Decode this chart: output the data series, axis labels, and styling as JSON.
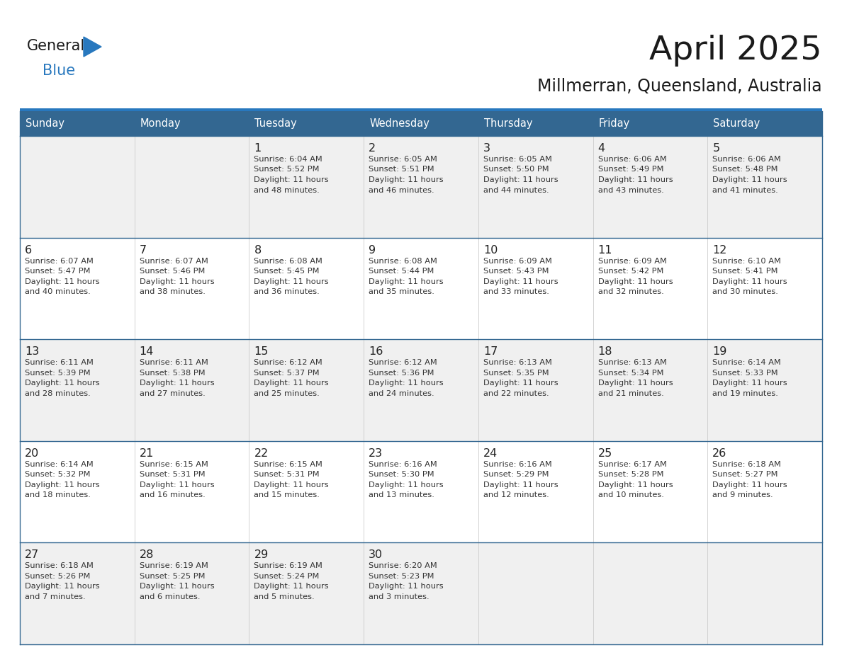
{
  "title": "April 2025",
  "subtitle": "Millmerran, Queensland, Australia",
  "header_color": "#336791",
  "header_text_color": "#ffffff",
  "cell_bg_white": "#ffffff",
  "cell_bg_gray": "#f0f0f0",
  "day_number_color": "#222222",
  "text_color": "#333333",
  "border_color": "#336791",
  "title_color": "#1a1a1a",
  "days_of_week": [
    "Sunday",
    "Monday",
    "Tuesday",
    "Wednesday",
    "Thursday",
    "Friday",
    "Saturday"
  ],
  "weeks": [
    [
      {
        "day": "",
        "sunrise": "",
        "sunset": "",
        "daylight": ""
      },
      {
        "day": "",
        "sunrise": "",
        "sunset": "",
        "daylight": ""
      },
      {
        "day": "1",
        "sunrise": "6:04 AM",
        "sunset": "5:52 PM",
        "daylight": "11 hours and 48 minutes."
      },
      {
        "day": "2",
        "sunrise": "6:05 AM",
        "sunset": "5:51 PM",
        "daylight": "11 hours and 46 minutes."
      },
      {
        "day": "3",
        "sunrise": "6:05 AM",
        "sunset": "5:50 PM",
        "daylight": "11 hours and 44 minutes."
      },
      {
        "day": "4",
        "sunrise": "6:06 AM",
        "sunset": "5:49 PM",
        "daylight": "11 hours and 43 minutes."
      },
      {
        "day": "5",
        "sunrise": "6:06 AM",
        "sunset": "5:48 PM",
        "daylight": "11 hours and 41 minutes."
      }
    ],
    [
      {
        "day": "6",
        "sunrise": "6:07 AM",
        "sunset": "5:47 PM",
        "daylight": "11 hours and 40 minutes."
      },
      {
        "day": "7",
        "sunrise": "6:07 AM",
        "sunset": "5:46 PM",
        "daylight": "11 hours and 38 minutes."
      },
      {
        "day": "8",
        "sunrise": "6:08 AM",
        "sunset": "5:45 PM",
        "daylight": "11 hours and 36 minutes."
      },
      {
        "day": "9",
        "sunrise": "6:08 AM",
        "sunset": "5:44 PM",
        "daylight": "11 hours and 35 minutes."
      },
      {
        "day": "10",
        "sunrise": "6:09 AM",
        "sunset": "5:43 PM",
        "daylight": "11 hours and 33 minutes."
      },
      {
        "day": "11",
        "sunrise": "6:09 AM",
        "sunset": "5:42 PM",
        "daylight": "11 hours and 32 minutes."
      },
      {
        "day": "12",
        "sunrise": "6:10 AM",
        "sunset": "5:41 PM",
        "daylight": "11 hours and 30 minutes."
      }
    ],
    [
      {
        "day": "13",
        "sunrise": "6:11 AM",
        "sunset": "5:39 PM",
        "daylight": "11 hours and 28 minutes."
      },
      {
        "day": "14",
        "sunrise": "6:11 AM",
        "sunset": "5:38 PM",
        "daylight": "11 hours and 27 minutes."
      },
      {
        "day": "15",
        "sunrise": "6:12 AM",
        "sunset": "5:37 PM",
        "daylight": "11 hours and 25 minutes."
      },
      {
        "day": "16",
        "sunrise": "6:12 AM",
        "sunset": "5:36 PM",
        "daylight": "11 hours and 24 minutes."
      },
      {
        "day": "17",
        "sunrise": "6:13 AM",
        "sunset": "5:35 PM",
        "daylight": "11 hours and 22 minutes."
      },
      {
        "day": "18",
        "sunrise": "6:13 AM",
        "sunset": "5:34 PM",
        "daylight": "11 hours and 21 minutes."
      },
      {
        "day": "19",
        "sunrise": "6:14 AM",
        "sunset": "5:33 PM",
        "daylight": "11 hours and 19 minutes."
      }
    ],
    [
      {
        "day": "20",
        "sunrise": "6:14 AM",
        "sunset": "5:32 PM",
        "daylight": "11 hours and 18 minutes."
      },
      {
        "day": "21",
        "sunrise": "6:15 AM",
        "sunset": "5:31 PM",
        "daylight": "11 hours and 16 minutes."
      },
      {
        "day": "22",
        "sunrise": "6:15 AM",
        "sunset": "5:31 PM",
        "daylight": "11 hours and 15 minutes."
      },
      {
        "day": "23",
        "sunrise": "6:16 AM",
        "sunset": "5:30 PM",
        "daylight": "11 hours and 13 minutes."
      },
      {
        "day": "24",
        "sunrise": "6:16 AM",
        "sunset": "5:29 PM",
        "daylight": "11 hours and 12 minutes."
      },
      {
        "day": "25",
        "sunrise": "6:17 AM",
        "sunset": "5:28 PM",
        "daylight": "11 hours and 10 minutes."
      },
      {
        "day": "26",
        "sunrise": "6:18 AM",
        "sunset": "5:27 PM",
        "daylight": "11 hours and 9 minutes."
      }
    ],
    [
      {
        "day": "27",
        "sunrise": "6:18 AM",
        "sunset": "5:26 PM",
        "daylight": "11 hours and 7 minutes."
      },
      {
        "day": "28",
        "sunrise": "6:19 AM",
        "sunset": "5:25 PM",
        "daylight": "11 hours and 6 minutes."
      },
      {
        "day": "29",
        "sunrise": "6:19 AM",
        "sunset": "5:24 PM",
        "daylight": "11 hours and 5 minutes."
      },
      {
        "day": "30",
        "sunrise": "6:20 AM",
        "sunset": "5:23 PM",
        "daylight": "11 hours and 3 minutes."
      },
      {
        "day": "",
        "sunrise": "",
        "sunset": "",
        "daylight": ""
      },
      {
        "day": "",
        "sunrise": "",
        "sunset": "",
        "daylight": ""
      },
      {
        "day": "",
        "sunrise": "",
        "sunset": "",
        "daylight": ""
      }
    ]
  ],
  "logo_general_color": "#1a1a1a",
  "logo_blue_color": "#2878be",
  "logo_triangle_color": "#2878be",
  "header_bar_color": "#2878be"
}
